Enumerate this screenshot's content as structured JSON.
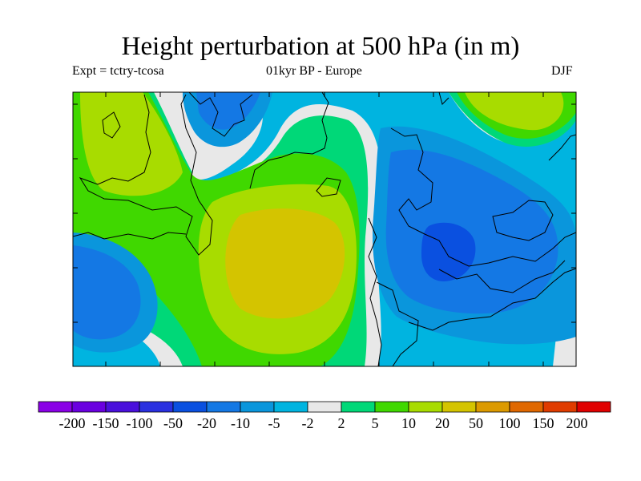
{
  "title": "Height perturbation at 500 hPa (in m)",
  "subtitle_left": "Expt = tctry-tcosa",
  "subtitle_center": "01kyr BP - Europe",
  "subtitle_right": "DJF",
  "colorbar": {
    "colors": [
      "#8a00e6",
      "#6a00e0",
      "#4a10dc",
      "#2a30e0",
      "#0a50e0",
      "#1478e4",
      "#0a96dc",
      "#00b4e0",
      "#e8e8e8",
      "#00d878",
      "#40d800",
      "#a8dc00",
      "#d4c400",
      "#dc9a00",
      "#e06800",
      "#e03c00",
      "#e00000"
    ],
    "labels": [
      "-200",
      "-150",
      "-100",
      "-50",
      "-20",
      "-10",
      "-5",
      "-2",
      "2",
      "5",
      "10",
      "20",
      "50",
      "100",
      "150",
      "200"
    ]
  }
}
